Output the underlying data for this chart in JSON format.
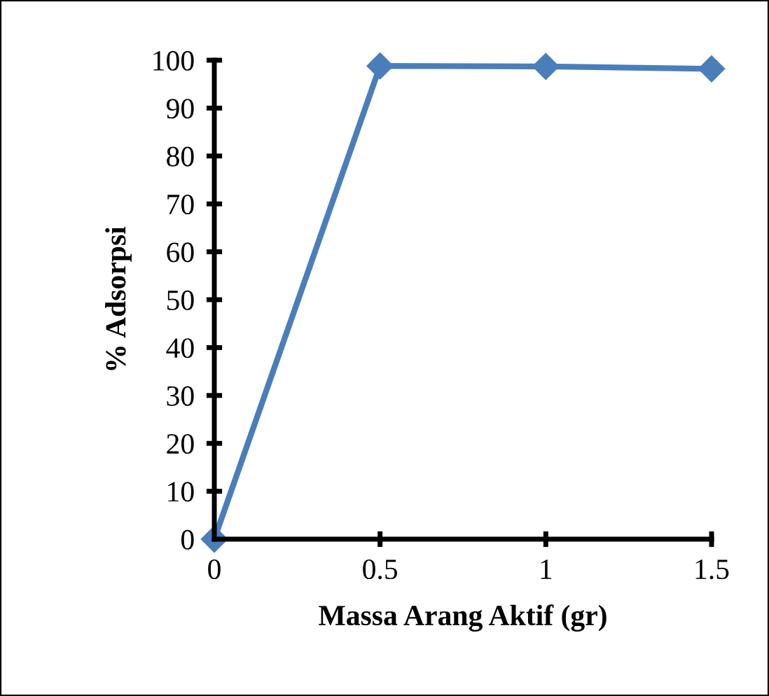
{
  "chart_data": {
    "type": "line",
    "xlabel": "Massa Arang Aktif (gr)",
    "ylabel": "% Adsorpsi",
    "x": [
      0,
      0.5,
      1,
      1.5
    ],
    "series": [
      {
        "color": "#4a7ebb",
        "values": [
          0,
          98.8,
          98.7,
          98.2
        ]
      }
    ],
    "xlim": [
      0,
      1.5
    ],
    "xticks": [
      0,
      0.5,
      1,
      1.5
    ],
    "ylim": [
      0,
      100
    ],
    "yticks": [
      0,
      10,
      20,
      30,
      40,
      50,
      60,
      70,
      80,
      90,
      100
    ],
    "marker": "diamond",
    "line_style": "solid",
    "grid": false,
    "legend": false
  }
}
